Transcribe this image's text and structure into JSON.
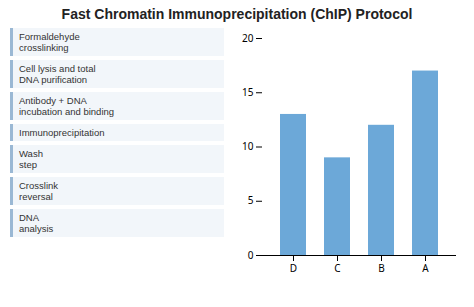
{
  "chart_data": {
    "type": "bar",
    "title": "Fast Chromatin Immunoprecipitation (ChIP) Protocol",
    "categories": [
      "D",
      "C",
      "B",
      "A"
    ],
    "values": [
      13,
      9,
      12,
      17
    ],
    "color": "#6ca8d8",
    "ylim": [
      0,
      20
    ],
    "yticks": [
      0,
      5,
      10,
      15,
      20
    ],
    "grid": false,
    "annotations": [
      "Formaldehyde\ncrosslinking",
      "Cell lysis and total\nDNA purification",
      "Antibody + DNA\nincubation and binding",
      "Immunoprecipitation",
      "Wash\nstep",
      "Crosslink\nreversal",
      "DNA\nanalysis"
    ]
  }
}
